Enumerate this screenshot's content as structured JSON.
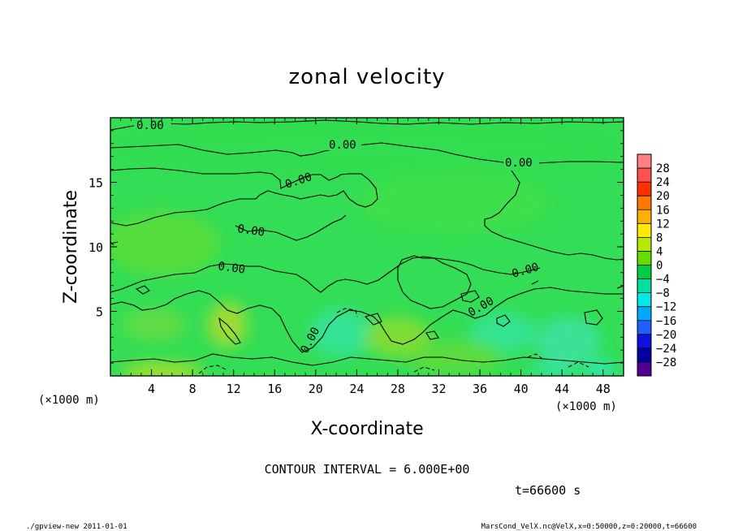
{
  "chart_data": {
    "type": "heatmap",
    "title": "zonal velocity",
    "xlabel": "X-coordinate",
    "ylabel": "Z-coordinate",
    "x_unit_label": "(×1000 m)",
    "y_unit_label": "(×1000 m)",
    "xlim": [
      0,
      50
    ],
    "ylim": [
      0,
      20
    ],
    "x_ticks": [
      "4",
      "8",
      "12",
      "16",
      "20",
      "24",
      "28",
      "32",
      "36",
      "40",
      "44",
      "48"
    ],
    "x_tick_values": [
      4,
      8,
      12,
      16,
      20,
      24,
      28,
      32,
      36,
      40,
      44,
      48
    ],
    "y_ticks": [
      "5",
      "10",
      "15"
    ],
    "y_tick_values": [
      5,
      10,
      15
    ],
    "contour_label": "0.00",
    "contour_interval_text": "CONTOUR INTERVAL = 6.000E+00",
    "time_text": "t=66600 s",
    "colorbar": {
      "levels": [
        "28",
        "24",
        "20",
        "16",
        "12",
        "8",
        "4",
        "0",
        "−4",
        "−8",
        "−12",
        "−16",
        "−20",
        "−24",
        "−28"
      ],
      "colors": [
        "#ff8080",
        "#ff5050",
        "#ff3000",
        "#ff7800",
        "#ffb000",
        "#ffea00",
        "#b8e800",
        "#66dd00",
        "#00cc44",
        "#00e0a0",
        "#00e8e8",
        "#00a8ff",
        "#2060ff",
        "#1010e0",
        "#0000a0",
        "#500090"
      ]
    },
    "field_colors": [
      "#20dd66",
      "#33dd55",
      "#55dd33",
      "#44e07a",
      "#36e49a",
      "#aadd33",
      "#66dd44"
    ],
    "grid": false
  },
  "footer": {
    "left": "./gpview-new   2011-01-01",
    "right": "MarsCond_VelX.nc@VelX,x=0:50000,z=0:20000,t=66600"
  }
}
